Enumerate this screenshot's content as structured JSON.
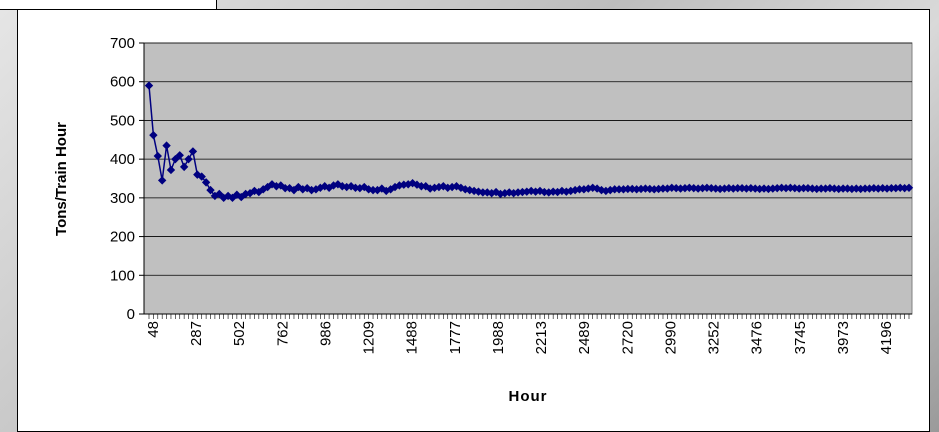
{
  "chart_data": {
    "type": "line",
    "title": "",
    "xlabel": "Hour",
    "ylabel": "Tons/Train Hour",
    "ylim": [
      0,
      700
    ],
    "yticks": [
      0,
      100,
      200,
      300,
      400,
      500,
      600,
      700
    ],
    "xtick_labels": [
      "48",
      "287",
      "502",
      "762",
      "986",
      "1209",
      "1488",
      "1777",
      "1988",
      "2213",
      "2489",
      "2720",
      "2990",
      "3252",
      "3476",
      "3745",
      "3973",
      "4196"
    ],
    "grid": true,
    "legend": "none",
    "colors": {
      "series": "#000080",
      "plot_background": "#c0c0c0",
      "grid": "#000000"
    },
    "series": [
      {
        "values": [
          590,
          462,
          408,
          345,
          435,
          372,
          400,
          410,
          380,
          400,
          420,
          360,
          355,
          340,
          320,
          305,
          310,
          300,
          305,
          300,
          308,
          302,
          310,
          312,
          318,
          315,
          322,
          328,
          335,
          330,
          332,
          325,
          325,
          320,
          328,
          322,
          325,
          320,
          322,
          326,
          330,
          326,
          332,
          335,
          330,
          328,
          330,
          326,
          325,
          328,
          322,
          320,
          320,
          324,
          318,
          322,
          328,
          332,
          334,
          335,
          338,
          334,
          330,
          330,
          324,
          326,
          328,
          330,
          326,
          328,
          330,
          326,
          322,
          320,
          318,
          316,
          314,
          314,
          312,
          315,
          310,
          312,
          314,
          312,
          314,
          315,
          316,
          318,
          316,
          318,
          315,
          314,
          316,
          315,
          318,
          316,
          318,
          320,
          322,
          322,
          324,
          326,
          324,
          320,
          318,
          320,
          322,
          322,
          322,
          323,
          323,
          322,
          323,
          324,
          323,
          322,
          323,
          324,
          324,
          326,
          325,
          324,
          325,
          326,
          325,
          324,
          325,
          326,
          325,
          324,
          323,
          324,
          325,
          324,
          325,
          325,
          324,
          325,
          324,
          323,
          324,
          323,
          324,
          325,
          326,
          325,
          326,
          325,
          324,
          325,
          325,
          324,
          323,
          324,
          324,
          325,
          324,
          323,
          324,
          324,
          323,
          324,
          323,
          324,
          324,
          325,
          324,
          325,
          324,
          325,
          325,
          326,
          325,
          326
        ]
      }
    ]
  }
}
